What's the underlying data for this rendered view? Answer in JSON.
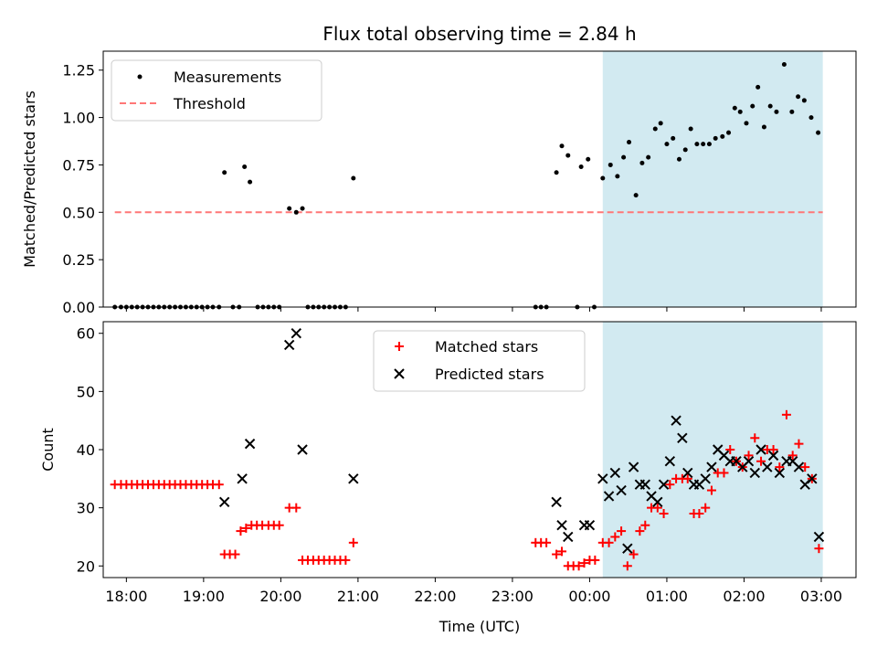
{
  "chart_data": [
    {
      "type": "scatter",
      "title": "Flux total observing time = 2.84 h",
      "xlabel": "",
      "ylabel": "Matched/Predicted stars",
      "xlim": [
        17.7,
        27.45
      ],
      "ylim": [
        0,
        1.35
      ],
      "xticks": [
        {
          "x": 18,
          "label": ""
        },
        {
          "x": 19,
          "label": ""
        },
        {
          "x": 20,
          "label": ""
        },
        {
          "x": 21,
          "label": ""
        },
        {
          "x": 22,
          "label": ""
        },
        {
          "x": 23,
          "label": ""
        },
        {
          "x": 24,
          "label": ""
        },
        {
          "x": 25,
          "label": ""
        },
        {
          "x": 26,
          "label": ""
        },
        {
          "x": 27,
          "label": ""
        }
      ],
      "yticks": [
        {
          "y": 0,
          "label": "0.00"
        },
        {
          "y": 0.25,
          "label": "0.25"
        },
        {
          "y": 0.5,
          "label": "0.50"
        },
        {
          "y": 0.75,
          "label": "0.75"
        },
        {
          "y": 1.0,
          "label": "1.00"
        },
        {
          "y": 1.25,
          "label": "1.25"
        }
      ],
      "shaded_span": {
        "x_start": 24.17,
        "x_end": 27.02,
        "color": "#add8e6"
      },
      "threshold": {
        "name": "Threshold",
        "y": 0.5,
        "x_start": 17.85,
        "x_end": 27.02,
        "color": "#ff7777"
      },
      "legend": {
        "placement": "upper-left",
        "entries": [
          {
            "label": "Measurements",
            "marker": "dot",
            "color": "#000000"
          },
          {
            "label": "Threshold",
            "marker": "dashed-line",
            "color": "#ff7777"
          }
        ]
      },
      "series": [
        {
          "name": "Measurements",
          "marker": "dot",
          "color": "#000000",
          "points": [
            [
              17.85,
              0
            ],
            [
              17.93,
              0
            ],
            [
              18.0,
              0
            ],
            [
              18.07,
              0
            ],
            [
              18.14,
              0
            ],
            [
              18.21,
              0
            ],
            [
              18.28,
              0
            ],
            [
              18.35,
              0
            ],
            [
              18.42,
              0
            ],
            [
              18.49,
              0
            ],
            [
              18.56,
              0
            ],
            [
              18.63,
              0
            ],
            [
              18.7,
              0
            ],
            [
              18.77,
              0
            ],
            [
              18.84,
              0
            ],
            [
              18.91,
              0
            ],
            [
              18.98,
              0
            ],
            [
              19.05,
              0
            ],
            [
              19.12,
              0
            ],
            [
              19.2,
              0
            ],
            [
              19.27,
              0.71
            ],
            [
              19.38,
              0
            ],
            [
              19.46,
              0
            ],
            [
              19.53,
              0.74
            ],
            [
              19.6,
              0.66
            ],
            [
              19.7,
              0
            ],
            [
              19.77,
              0
            ],
            [
              19.84,
              0
            ],
            [
              19.91,
              0
            ],
            [
              19.98,
              0
            ],
            [
              20.11,
              0.52
            ],
            [
              20.2,
              0.5
            ],
            [
              20.28,
              0.52
            ],
            [
              20.35,
              0
            ],
            [
              20.42,
              0
            ],
            [
              20.49,
              0
            ],
            [
              20.56,
              0
            ],
            [
              20.63,
              0
            ],
            [
              20.7,
              0
            ],
            [
              20.77,
              0
            ],
            [
              20.84,
              0
            ],
            [
              20.94,
              0.68
            ],
            [
              23.3,
              0
            ],
            [
              23.37,
              0
            ],
            [
              23.44,
              0
            ],
            [
              23.57,
              0.71
            ],
            [
              23.64,
              0.85
            ],
            [
              23.72,
              0.8
            ],
            [
              23.84,
              0
            ],
            [
              23.89,
              0.74
            ],
            [
              23.98,
              0.78
            ],
            [
              24.06,
              0
            ],
            [
              24.17,
              0.68
            ],
            [
              24.27,
              0.75
            ],
            [
              24.36,
              0.69
            ],
            [
              24.44,
              0.79
            ],
            [
              24.51,
              0.87
            ],
            [
              24.6,
              0.59
            ],
            [
              24.68,
              0.76
            ],
            [
              24.76,
              0.79
            ],
            [
              24.85,
              0.94
            ],
            [
              24.92,
              0.97
            ],
            [
              25.0,
              0.86
            ],
            [
              25.08,
              0.89
            ],
            [
              25.16,
              0.78
            ],
            [
              25.24,
              0.83
            ],
            [
              25.31,
              0.94
            ],
            [
              25.39,
              0.86
            ],
            [
              25.47,
              0.86
            ],
            [
              25.55,
              0.86
            ],
            [
              25.63,
              0.89
            ],
            [
              25.72,
              0.9
            ],
            [
              25.8,
              0.92
            ],
            [
              25.88,
              1.05
            ],
            [
              25.95,
              1.03
            ],
            [
              26.03,
              0.97
            ],
            [
              26.11,
              1.06
            ],
            [
              26.18,
              1.16
            ],
            [
              26.26,
              0.95
            ],
            [
              26.34,
              1.06
            ],
            [
              26.42,
              1.03
            ],
            [
              26.52,
              1.28
            ],
            [
              26.62,
              1.03
            ],
            [
              26.7,
              1.11
            ],
            [
              26.78,
              1.09
            ],
            [
              26.87,
              1.0
            ],
            [
              26.96,
              0.92
            ]
          ]
        }
      ]
    },
    {
      "type": "scatter",
      "title": "",
      "xlabel": "Time (UTC)",
      "ylabel": "Count",
      "xlim": [
        17.7,
        27.45
      ],
      "ylim": [
        18,
        62
      ],
      "xticks": [
        {
          "x": 18,
          "label": "18:00"
        },
        {
          "x": 19,
          "label": "19:00"
        },
        {
          "x": 20,
          "label": "20:00"
        },
        {
          "x": 21,
          "label": "21:00"
        },
        {
          "x": 22,
          "label": "22:00"
        },
        {
          "x": 23,
          "label": "23:00"
        },
        {
          "x": 24,
          "label": "00:00"
        },
        {
          "x": 25,
          "label": "01:00"
        },
        {
          "x": 26,
          "label": "02:00"
        },
        {
          "x": 27,
          "label": "03:00"
        }
      ],
      "yticks": [
        {
          "y": 20,
          "label": "20"
        },
        {
          "y": 30,
          "label": "30"
        },
        {
          "y": 40,
          "label": "40"
        },
        {
          "y": 50,
          "label": "50"
        },
        {
          "y": 60,
          "label": "60"
        }
      ],
      "shaded_span": {
        "x_start": 24.17,
        "x_end": 27.02,
        "color": "#add8e6"
      },
      "legend": {
        "placement": "upper-center",
        "entries": [
          {
            "label": "Matched stars",
            "marker": "plus",
            "color": "#ff0000"
          },
          {
            "label": "Predicted stars",
            "marker": "x",
            "color": "#000000"
          }
        ]
      },
      "series": [
        {
          "name": "Matched stars",
          "marker": "plus",
          "color": "#ff0000",
          "points": [
            [
              17.85,
              34
            ],
            [
              17.93,
              34
            ],
            [
              18.0,
              34
            ],
            [
              18.07,
              34
            ],
            [
              18.14,
              34
            ],
            [
              18.21,
              34
            ],
            [
              18.28,
              34
            ],
            [
              18.35,
              34
            ],
            [
              18.42,
              34
            ],
            [
              18.49,
              34
            ],
            [
              18.56,
              34
            ],
            [
              18.63,
              34
            ],
            [
              18.7,
              34
            ],
            [
              18.77,
              34
            ],
            [
              18.84,
              34
            ],
            [
              18.91,
              34
            ],
            [
              18.98,
              34
            ],
            [
              19.05,
              34
            ],
            [
              19.12,
              34
            ],
            [
              19.2,
              34
            ],
            [
              19.27,
              22
            ],
            [
              19.34,
              22
            ],
            [
              19.41,
              22
            ],
            [
              19.48,
              26
            ],
            [
              19.55,
              26.5
            ],
            [
              19.62,
              27
            ],
            [
              19.69,
              27
            ],
            [
              19.76,
              27
            ],
            [
              19.84,
              27
            ],
            [
              19.91,
              27
            ],
            [
              19.98,
              27
            ],
            [
              20.11,
              30
            ],
            [
              20.2,
              30
            ],
            [
              20.28,
              21
            ],
            [
              20.35,
              21
            ],
            [
              20.42,
              21
            ],
            [
              20.49,
              21
            ],
            [
              20.56,
              21
            ],
            [
              20.63,
              21
            ],
            [
              20.7,
              21
            ],
            [
              20.77,
              21
            ],
            [
              20.84,
              21
            ],
            [
              20.94,
              24
            ],
            [
              23.3,
              24
            ],
            [
              23.37,
              24
            ],
            [
              23.44,
              24
            ],
            [
              23.57,
              22
            ],
            [
              23.64,
              22.5
            ],
            [
              23.72,
              20
            ],
            [
              23.79,
              20
            ],
            [
              23.86,
              20
            ],
            [
              23.93,
              20.5
            ],
            [
              24.0,
              21
            ],
            [
              24.07,
              21
            ],
            [
              24.17,
              24
            ],
            [
              24.25,
              24
            ],
            [
              24.33,
              25
            ],
            [
              24.41,
              26
            ],
            [
              24.49,
              20
            ],
            [
              24.57,
              22
            ],
            [
              24.65,
              26
            ],
            [
              24.72,
              27
            ],
            [
              24.8,
              30
            ],
            [
              24.88,
              30
            ],
            [
              24.96,
              29
            ],
            [
              25.04,
              34
            ],
            [
              25.12,
              35
            ],
            [
              25.2,
              35
            ],
            [
              25.27,
              35
            ],
            [
              25.35,
              29
            ],
            [
              25.42,
              29
            ],
            [
              25.5,
              30
            ],
            [
              25.58,
              33
            ],
            [
              25.66,
              36
            ],
            [
              25.74,
              36
            ],
            [
              25.82,
              40
            ],
            [
              25.9,
              38
            ],
            [
              25.98,
              37
            ],
            [
              26.06,
              39
            ],
            [
              26.14,
              42
            ],
            [
              26.22,
              38
            ],
            [
              26.3,
              40
            ],
            [
              26.38,
              40
            ],
            [
              26.46,
              37
            ],
            [
              26.55,
              46
            ],
            [
              26.63,
              39
            ],
            [
              26.71,
              41
            ],
            [
              26.79,
              37
            ],
            [
              26.88,
              35
            ],
            [
              26.97,
              23
            ]
          ]
        },
        {
          "name": "Predicted stars",
          "marker": "x",
          "color": "#000000",
          "points": [
            [
              19.27,
              31
            ],
            [
              19.5,
              35
            ],
            [
              19.6,
              41
            ],
            [
              20.11,
              58
            ],
            [
              20.2,
              60
            ],
            [
              20.28,
              40
            ],
            [
              20.94,
              35
            ],
            [
              23.57,
              31
            ],
            [
              23.64,
              27
            ],
            [
              23.72,
              25
            ],
            [
              23.93,
              27
            ],
            [
              24.0,
              27
            ],
            [
              24.17,
              35
            ],
            [
              24.25,
              32
            ],
            [
              24.33,
              36
            ],
            [
              24.41,
              33
            ],
            [
              24.49,
              23
            ],
            [
              24.57,
              37
            ],
            [
              24.65,
              34
            ],
            [
              24.72,
              34
            ],
            [
              24.8,
              32
            ],
            [
              24.88,
              31
            ],
            [
              24.96,
              34
            ],
            [
              25.04,
              38
            ],
            [
              25.12,
              45
            ],
            [
              25.2,
              42
            ],
            [
              25.27,
              36
            ],
            [
              25.35,
              34
            ],
            [
              25.42,
              34
            ],
            [
              25.5,
              35
            ],
            [
              25.58,
              37
            ],
            [
              25.66,
              40
            ],
            [
              25.74,
              39
            ],
            [
              25.82,
              38
            ],
            [
              25.9,
              38
            ],
            [
              25.98,
              37
            ],
            [
              26.06,
              38
            ],
            [
              26.14,
              36
            ],
            [
              26.22,
              40
            ],
            [
              26.3,
              37
            ],
            [
              26.38,
              39
            ],
            [
              26.46,
              36
            ],
            [
              26.55,
              38
            ],
            [
              26.63,
              38
            ],
            [
              26.71,
              37
            ],
            [
              26.79,
              34
            ],
            [
              26.88,
              35
            ],
            [
              26.97,
              25
            ]
          ]
        }
      ]
    }
  ]
}
